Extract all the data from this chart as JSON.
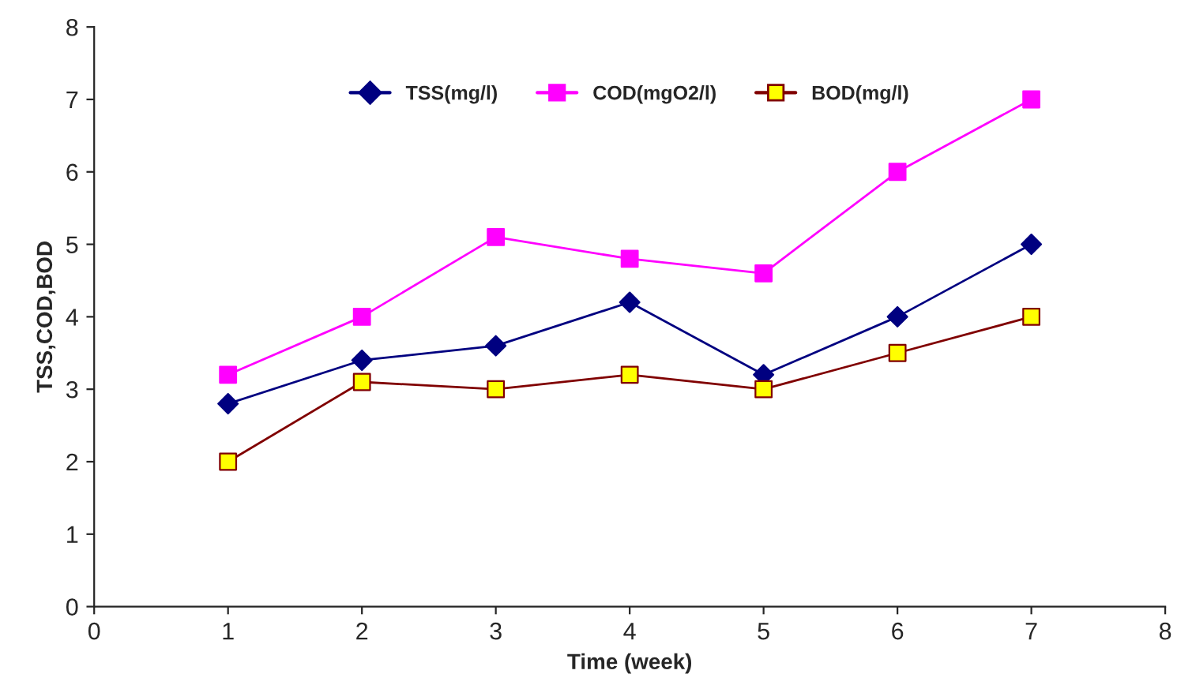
{
  "chart_data": {
    "type": "line",
    "xlabel": "Time (week)",
    "ylabel": "TSS,COD,BOD",
    "x": [
      1,
      2,
      3,
      4,
      5,
      6,
      7
    ],
    "series": [
      {
        "name": "TSS(mg/l)",
        "color": "#000080",
        "marker": "diamond",
        "values": [
          2.8,
          3.4,
          3.6,
          4.2,
          3.2,
          4.0,
          5.0
        ]
      },
      {
        "name": "COD(mgO2/l)",
        "color": "#ff00ff",
        "marker": "square",
        "values": [
          3.2,
          4.0,
          5.1,
          4.8,
          4.6,
          6.0,
          7.0
        ]
      },
      {
        "name": "BOD(mg/l)",
        "color": "#800000",
        "colors": [
          "#ffff00",
          "#ffff00",
          "#ffff00",
          "#ffff00",
          "#ffff00",
          "#ffff00",
          "#ffff00"
        ],
        "marker": "square",
        "values": [
          2.0,
          3.1,
          3.0,
          3.2,
          3.0,
          3.5,
          4.0
        ]
      }
    ],
    "xlim": [
      0,
      8
    ],
    "xticks": [
      0,
      1,
      2,
      3,
      4,
      5,
      6,
      7,
      8
    ],
    "ylim": [
      0,
      8
    ],
    "yticks": [
      0,
      1,
      2,
      3,
      4,
      5,
      6,
      7,
      8
    ],
    "grid": false,
    "legend": "top",
    "line_style": "solid"
  }
}
